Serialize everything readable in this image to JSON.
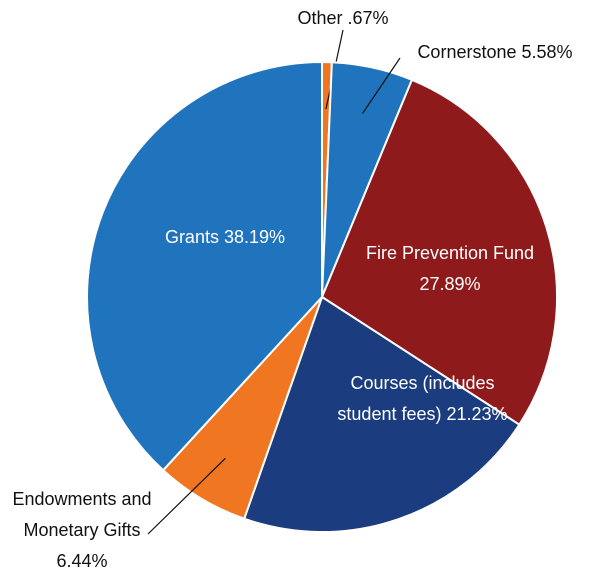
{
  "chart_data": {
    "type": "pie",
    "categories": [
      "Other",
      "Cornerstone",
      "Fire Prevention Fund",
      "Courses (includes student fees)",
      "Endowments and Monetary Gifts",
      "Grants"
    ],
    "values": [
      0.67,
      5.58,
      27.89,
      21.23,
      6.44,
      38.19
    ],
    "value_labels": [
      ".67%",
      "5.58%",
      "27.89%",
      "21.23%",
      "6.44%",
      "38.19%"
    ],
    "colors": [
      "#f07622",
      "#1f74bd",
      "#8e1a1c",
      "#1b3d7f",
      "#f07622",
      "#1f74bd"
    ]
  }
}
